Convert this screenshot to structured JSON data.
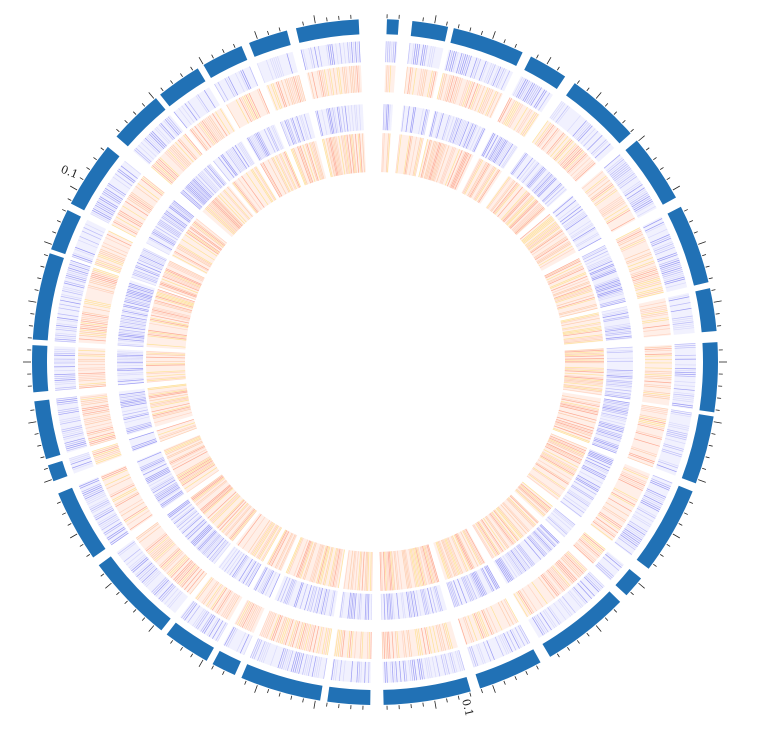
{
  "figure": {
    "kind": "circular-genome-track-plot",
    "background": "#ffffff"
  },
  "ideogram": {
    "color": "#2171b5",
    "tick_labels": [
      "0.1",
      "0.1"
    ]
  },
  "tracks": [
    {
      "name": "outer-blue-heat",
      "palette": [
        "#8c8cf2",
        "#b3b3f7",
        "#d6d6fb"
      ]
    },
    {
      "name": "outer-orange-heat",
      "palette": [
        "#fc9f86",
        "#fdc8a6",
        "#fee08b",
        "#ffd0bd"
      ]
    },
    {
      "name": "inner-blue-heat",
      "palette": [
        "#8c8cf2",
        "#b3b3f7",
        "#d6d6fb"
      ]
    },
    {
      "name": "inner-orange-heat",
      "palette": [
        "#fc9f86",
        "#fdc8a6",
        "#fee08b",
        "#ffd0bd"
      ]
    }
  ]
}
